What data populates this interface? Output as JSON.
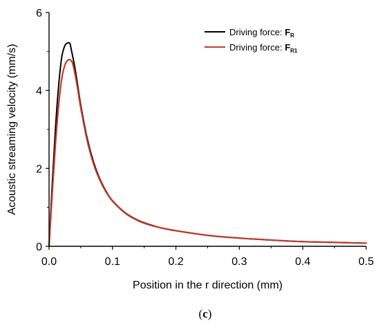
{
  "chart_data": {
    "type": "line",
    "title": "",
    "xlabel": "Position in the r direction (mm)",
    "ylabel": "Acoustic streaming velocity (mm/s)",
    "xlim": [
      0.0,
      0.5
    ],
    "ylim": [
      0,
      6
    ],
    "x_ticks": [
      "0.0",
      "0.1",
      "0.2",
      "0.3",
      "0.4",
      "0.5"
    ],
    "y_ticks": [
      "0",
      "2",
      "4",
      "6"
    ],
    "x_tick_values": [
      0.0,
      0.1,
      0.2,
      0.3,
      0.4,
      0.5
    ],
    "y_tick_values": [
      0,
      2,
      4,
      6
    ],
    "grid": false,
    "legend_position": "top-right",
    "panel_label": {
      "open": "(",
      "letter": "c",
      "close": ")"
    },
    "series": [
      {
        "legend_prefix": "Driving force: ",
        "symbol": "F",
        "subscript": "R",
        "color": "#000000",
        "x": [
          0.0,
          0.005,
          0.01,
          0.015,
          0.02,
          0.025,
          0.03,
          0.033,
          0.035,
          0.04,
          0.045,
          0.05,
          0.06,
          0.07,
          0.08,
          0.09,
          0.1,
          0.12,
          0.14,
          0.16,
          0.18,
          0.2,
          0.25,
          0.3,
          0.35,
          0.4,
          0.45,
          0.5
        ],
        "y": [
          0.0,
          1.6,
          3.0,
          4.1,
          4.85,
          5.15,
          5.22,
          5.2,
          5.05,
          4.65,
          4.15,
          3.62,
          2.78,
          2.17,
          1.73,
          1.41,
          1.17,
          0.86,
          0.67,
          0.55,
          0.46,
          0.4,
          0.28,
          0.21,
          0.16,
          0.12,
          0.1,
          0.08
        ]
      },
      {
        "legend_prefix": "Driving force: ",
        "symbol": "F",
        "subscript": "R1",
        "color": "#c0392b",
        "x": [
          0.0,
          0.005,
          0.01,
          0.015,
          0.02,
          0.025,
          0.03,
          0.034,
          0.037,
          0.04,
          0.045,
          0.05,
          0.06,
          0.07,
          0.08,
          0.09,
          0.1,
          0.12,
          0.14,
          0.16,
          0.18,
          0.2,
          0.25,
          0.3,
          0.35,
          0.4,
          0.45,
          0.5
        ],
        "y": [
          0.0,
          1.35,
          2.6,
          3.6,
          4.3,
          4.65,
          4.78,
          4.78,
          4.7,
          4.5,
          4.05,
          3.55,
          2.72,
          2.12,
          1.7,
          1.39,
          1.16,
          0.85,
          0.66,
          0.54,
          0.46,
          0.4,
          0.28,
          0.21,
          0.16,
          0.12,
          0.1,
          0.08
        ]
      }
    ]
  }
}
